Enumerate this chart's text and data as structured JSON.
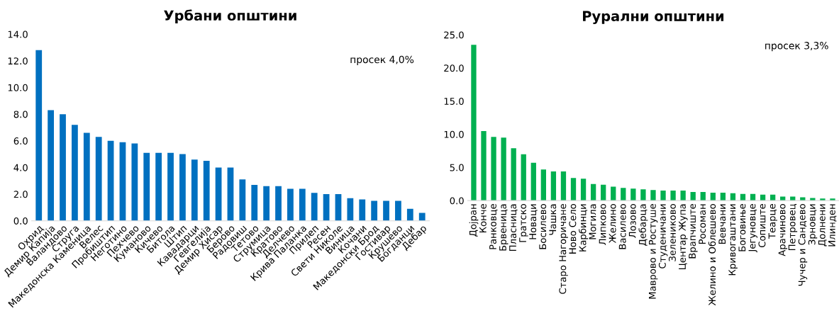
{
  "chart_data": [
    {
      "type": "bar",
      "title": "Урбани општини",
      "categories": [
        "Охрид",
        "Демир Капија",
        "Валандово",
        "Струга",
        "Македонска Каменица",
        "Велес",
        "Пробиштип",
        "Неготино",
        "Пехчево",
        "Куманово",
        "Кичево",
        "Битола",
        "Штип",
        "Кавадарци",
        "Гевгелија",
        "Демир Хисар",
        "Берово",
        "Радовиш",
        "Тетово",
        "Струмица",
        "Кратово",
        "Делчево",
        "Крива Паланка",
        "Прилеп",
        "Ресен",
        "Свети Николе",
        "Виница",
        "Кочани",
        "Македонски Брод",
        "Гостивар",
        "Крушево",
        "Богданци",
        "Дебар"
      ],
      "values": [
        12.8,
        8.3,
        8.0,
        7.2,
        6.6,
        6.3,
        6.0,
        5.9,
        5.8,
        5.1,
        5.1,
        5.1,
        5.0,
        4.6,
        4.5,
        4.0,
        4.0,
        3.1,
        2.7,
        2.6,
        2.6,
        2.4,
        2.4,
        2.1,
        2.0,
        2.0,
        1.7,
        1.6,
        1.5,
        1.5,
        1.5,
        0.9,
        0.6
      ],
      "color": "#0070c0",
      "ylim": [
        0,
        14
      ],
      "yticks": [
        {
          "value": 0,
          "label": "0.0"
        },
        {
          "value": 2,
          "label": "2.0"
        },
        {
          "value": 4,
          "label": "4.0"
        },
        {
          "value": 6,
          "label": "6.0"
        },
        {
          "value": 8,
          "label": "8.0"
        },
        {
          "value": 10,
          "label": "10.0"
        },
        {
          "value": 12,
          "label": "12.0"
        },
        {
          "value": 14,
          "label": "14.0"
        }
      ],
      "annotations": [
        "просек 4,0%"
      ]
    },
    {
      "type": "bar",
      "title": "Рурални општини",
      "categories": [
        "Дојран",
        "Конче",
        "Ранковце",
        "Брвеница",
        "Пласница",
        "Гратско",
        "Новаци",
        "Босилево",
        "Чашка",
        "Старо Нагоричане",
        "Ново Село",
        "Карбинци",
        "Могила",
        "Липково",
        "Желино",
        "Василево",
        "Лозово",
        "Дебарца",
        "Маврово и Ростуше",
        "Студеничани",
        "Зелениково",
        "Центар Жупа",
        "Врапчиште",
        "Росоман",
        "Желино и Облешево",
        "Вевчани",
        "Кривогаштани",
        "Боговиње",
        "Јегуновце",
        "Сопиште",
        "Теарце",
        "Арачиново",
        "Петровец",
        "Чучер и Сандево",
        "Зрновци",
        "Долнени",
        "Илинден"
      ],
      "values": [
        23.5,
        10.5,
        9.6,
        9.5,
        7.9,
        7.0,
        5.7,
        4.7,
        4.4,
        4.4,
        3.4,
        3.3,
        2.5,
        2.4,
        2.1,
        1.9,
        1.8,
        1.7,
        1.6,
        1.5,
        1.5,
        1.5,
        1.3,
        1.3,
        1.2,
        1.2,
        1.1,
        1.0,
        1.0,
        0.9,
        0.9,
        0.6,
        0.6,
        0.5,
        0.4,
        0.3,
        0.3
      ],
      "color": "#00b050",
      "ylim": [
        0,
        25
      ],
      "yticks": [
        {
          "value": 0,
          "label": "0.0"
        },
        {
          "value": 5,
          "label": "5.0"
        },
        {
          "value": 10,
          "label": "10.0"
        },
        {
          "value": 15,
          "label": "15.0"
        },
        {
          "value": 20,
          "label": "20.0"
        },
        {
          "value": 25,
          "label": "25.0"
        }
      ],
      "annotations": [
        "просек 3,3%"
      ]
    }
  ]
}
